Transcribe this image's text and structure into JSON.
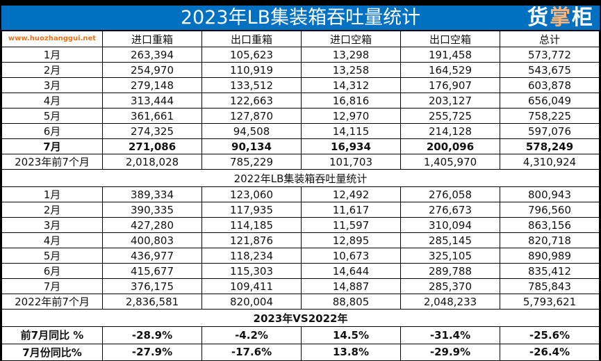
{
  "title": "2023年LB集装箱吞吐量统计",
  "headers": [
    "",
    "进口重箱",
    "出口重箱",
    "进口空箱",
    "出口空箱",
    "总计"
  ],
  "rows_2023": [
    [
      "1月",
      "263,394",
      "105,623",
      "13,298",
      "191,458",
      "573,772"
    ],
    [
      "2月",
      "254,970",
      "110,919",
      "13,258",
      "164,529",
      "543,675"
    ],
    [
      "3月",
      "279,148",
      "133,512",
      "14,312",
      "176,907",
      "603,878"
    ],
    [
      "4月",
      "313,444",
      "122,663",
      "16,816",
      "203,127",
      "656,049"
    ],
    [
      "5月",
      "361,661",
      "127,870",
      "12,970",
      "255,725",
      "758,225"
    ],
    [
      "6月",
      "274,325",
      "94,508",
      "14,115",
      "214,128",
      "597,076"
    ],
    [
      "7月",
      "271,086",
      "90,134",
      "16,934",
      "200,096",
      "578,249"
    ],
    [
      "2023年前7个月",
      "2,018,028",
      "785,229",
      "101,703",
      "1,405,970",
      "4,310,924"
    ]
  ],
  "section_2022": "2022年LB集装箱吞吐量统计",
  "rows_2022": [
    [
      "1月",
      "389,334",
      "123,060",
      "12,492",
      "276,058",
      "800,943"
    ],
    [
      "2月",
      "390,335",
      "117,935",
      "11,617",
      "276,673",
      "796,560"
    ],
    [
      "3月",
      "427,280",
      "114,185",
      "11,597",
      "310,094",
      "863,156"
    ],
    [
      "4月",
      "400,803",
      "121,876",
      "12,895",
      "285,145",
      "820,718"
    ],
    [
      "5月",
      "436,977",
      "118,234",
      "10,673",
      "325,105",
      "890,989"
    ],
    [
      "6月",
      "415,677",
      "115,303",
      "14,644",
      "289,788",
      "835,412"
    ],
    [
      "7月",
      "376,175",
      "109,411",
      "14,887",
      "285,370",
      "785,843"
    ],
    [
      "2022年前7个月",
      "2,836,581",
      "820,004",
      "88,805",
      "2,048,233",
      "5,793,621"
    ]
  ],
  "section_vs": "2023年VS2022年",
  "rows_vs": [
    [
      "前7月同比 %",
      "-28.9%",
      "-4.2%",
      "14.5%",
      "-31.4%",
      "-25.6%"
    ],
    [
      "7月份同比%",
      "-27.9%",
      "-17.6%",
      "13.8%",
      "-29.9%",
      "-26.4%"
    ]
  ],
  "watermark": {
    "logo_text": "货掌柜",
    "url": "www.huozhanggui.net"
  },
  "colors": {
    "title_bg": "#0070c0",
    "watermark_blue": "#1f5fb0",
    "watermark_orange": "#e8731c"
  }
}
